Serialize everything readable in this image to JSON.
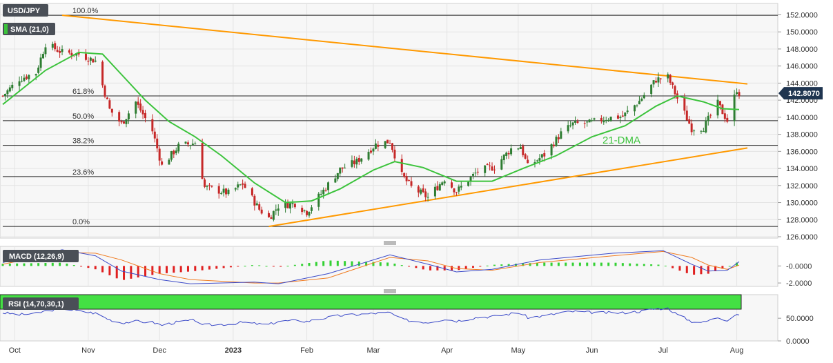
{
  "symbol": "USD/JPY",
  "last_price": "142.8070",
  "colors": {
    "bull": "#2e7d32",
    "bear": "#c62828",
    "sma": "#3cc33c",
    "trend": "#ff9900",
    "macd": "#3a49c8",
    "signal": "#f07b20",
    "rsi": "#3a49c8",
    "overbought": "#44e044",
    "oversold": "#f08080",
    "price_tag": "#1f3550"
  },
  "chart_data": [
    {
      "type": "candlestick",
      "title": "USD/JPY",
      "legend": [
        "SMA (21,0)"
      ],
      "annotation": "21-DMA",
      "x_tick_labels": [
        "Oct",
        "Nov",
        "Dec",
        "2023",
        "Feb",
        "Mar",
        "Apr",
        "May",
        "Jun",
        "Jul",
        "Aug"
      ],
      "y_tick_labels": [
        "152.0000",
        "150.0000",
        "148.0000",
        "146.0000",
        "144.0000",
        "142.0000",
        "140.0000",
        "138.0000",
        "136.0000",
        "134.0000",
        "132.0000",
        "130.0000",
        "128.0000",
        "126.0000"
      ],
      "ylim": [
        126,
        152.2
      ],
      "last_price": 142.807,
      "fibonacci": [
        {
          "label": "100.0%",
          "price": 151.95
        },
        {
          "label": "61.8%",
          "price": 142.5
        },
        {
          "label": "50.0%",
          "price": 139.6
        },
        {
          "label": "38.2%",
          "price": 136.7
        },
        {
          "label": "23.6%",
          "price": 133.05
        },
        {
          "label": "0.0%",
          "price": 127.2
        }
      ],
      "trendlines": [
        {
          "from": [
            "Oct 21",
            151.95
          ],
          "to": [
            "Aug 2",
            143.9
          ]
        },
        {
          "from": [
            "Jan 16",
            127.2
          ],
          "to": [
            "Aug 2",
            136.4
          ]
        }
      ],
      "ohlc_anchor_close": [
        [
          "Sep 26",
          142.5
        ],
        [
          "Oct 3",
          144.5
        ],
        [
          "Oct 10",
          145.2
        ],
        [
          "Oct 14",
          148.6
        ],
        [
          "Oct 21",
          147.6
        ],
        [
          "Oct 28",
          147.4
        ],
        [
          "Nov 4",
          146.6
        ],
        [
          "Nov 10",
          140.9
        ],
        [
          "Nov 15",
          139.2
        ],
        [
          "Nov 21",
          141.8
        ],
        [
          "Nov 28",
          138.4
        ],
        [
          "Dec 2",
          134.3
        ],
        [
          "Dec 9",
          136.6
        ],
        [
          "Dec 16",
          137.0
        ],
        [
          "Dec 20",
          131.8
        ],
        [
          "Dec 30",
          131.1
        ],
        [
          "Jan 5",
          132.2
        ],
        [
          "Jan 12",
          129.2
        ],
        [
          "Jan 16",
          128.2
        ],
        [
          "Jan 20",
          129.6
        ],
        [
          "Jan 27",
          129.9
        ],
        [
          "Feb 1",
          128.9
        ],
        [
          "Feb 8",
          131.4
        ],
        [
          "Feb 15",
          133.9
        ],
        [
          "Feb 22",
          134.8
        ],
        [
          "Mar 2",
          136.8
        ],
        [
          "Mar 8",
          137.2
        ],
        [
          "Mar 13",
          133.2
        ],
        [
          "Mar 17",
          131.8
        ],
        [
          "Mar 24",
          130.6
        ],
        [
          "Mar 31",
          132.8
        ],
        [
          "Apr 5",
          131.3
        ],
        [
          "Apr 14",
          133.7
        ],
        [
          "Apr 21",
          134.2
        ],
        [
          "Apr 28",
          136.3
        ],
        [
          "May 2",
          136.6
        ],
        [
          "May 5",
          134.2
        ],
        [
          "May 12",
          135.6
        ],
        [
          "May 19",
          138.1
        ],
        [
          "May 24",
          139.2
        ],
        [
          "May 31",
          139.3
        ],
        [
          "Jun 7",
          139.9
        ],
        [
          "Jun 14",
          140.1
        ],
        [
          "Jun 21",
          141.9
        ],
        [
          "Jun 28",
          144.4
        ],
        [
          "Jul 3",
          144.7
        ],
        [
          "Jul 7",
          142.2
        ],
        [
          "Jul 13",
          138.7
        ],
        [
          "Jul 18",
          138.8
        ],
        [
          "Jul 24",
          141.6
        ],
        [
          "Jul 28",
          139.6
        ],
        [
          "Aug 1",
          143.3
        ],
        [
          "Aug 2",
          142.8
        ]
      ],
      "sma_21": [
        [
          "Sep 26",
          141.5
        ],
        [
          "Oct 14",
          145.5
        ],
        [
          "Oct 28",
          147.6
        ],
        [
          "Nov 7",
          147.4
        ],
        [
          "Nov 15",
          145.0
        ],
        [
          "Nov 25",
          142.0
        ],
        [
          "Dec 5",
          139.5
        ],
        [
          "Dec 16",
          137.7
        ],
        [
          "Dec 27",
          135.5
        ],
        [
          "Jan 10",
          132.3
        ],
        [
          "Jan 23",
          130.0
        ],
        [
          "Feb 3",
          130.2
        ],
        [
          "Feb 15",
          131.6
        ],
        [
          "Mar 1",
          133.8
        ],
        [
          "Mar 10",
          134.8
        ],
        [
          "Mar 22",
          134.1
        ],
        [
          "Apr 5",
          132.5
        ],
        [
          "Apr 20",
          132.5
        ],
        [
          "May 3",
          134.0
        ],
        [
          "May 17",
          135.5
        ],
        [
          "Jun 1",
          137.7
        ],
        [
          "Jun 15",
          139.0
        ],
        [
          "Jun 28",
          141.3
        ],
        [
          "Jul 7",
          142.5
        ],
        [
          "Jul 18",
          141.8
        ],
        [
          "Jul 26",
          141.0
        ],
        [
          "Aug 2",
          140.9
        ]
      ]
    },
    {
      "type": "bar",
      "title": "MACD (12,26,9)",
      "y_tick_labels": [
        "-0.0000",
        "-2.0000"
      ],
      "ylim": [
        -2.4,
        2.3
      ],
      "macd": [
        [
          "Sep 26",
          0.4
        ],
        [
          "Oct 21",
          1.9
        ],
        [
          "Nov 4",
          1.2
        ],
        [
          "Nov 15",
          -0.6
        ],
        [
          "Dec 1",
          -1.6
        ],
        [
          "Dec 14",
          -2.1
        ],
        [
          "Jan 10",
          -1.9
        ],
        [
          "Jan 20",
          -2.1
        ],
        [
          "Feb 10",
          -0.9
        ],
        [
          "Mar 8",
          1.3
        ],
        [
          "Mar 24",
          0.2
        ],
        [
          "Apr 5",
          -0.7
        ],
        [
          "Apr 20",
          -0.4
        ],
        [
          "May 10",
          0.7
        ],
        [
          "Jun 10",
          1.5
        ],
        [
          "Jul 1",
          1.8
        ],
        [
          "Jul 13",
          0.2
        ],
        [
          "Jul 20",
          -0.6
        ],
        [
          "Jul 28",
          -0.5
        ],
        [
          "Aug 2",
          0.5
        ]
      ],
      "signal": [
        [
          "Sep 26",
          0.2
        ],
        [
          "Oct 21",
          1.6
        ],
        [
          "Nov 4",
          1.5
        ],
        [
          "Nov 15",
          0.7
        ],
        [
          "Dec 1",
          -0.9
        ],
        [
          "Dec 14",
          -1.6
        ],
        [
          "Jan 10",
          -2.0
        ],
        [
          "Jan 20",
          -2.0
        ],
        [
          "Feb 10",
          -1.4
        ],
        [
          "Mar 8",
          1.0
        ],
        [
          "Mar 24",
          0.6
        ],
        [
          "Apr 5",
          -0.3
        ],
        [
          "Apr 20",
          -0.5
        ],
        [
          "May 10",
          0.4
        ],
        [
          "Jun 10",
          1.2
        ],
        [
          "Jul 1",
          1.7
        ],
        [
          "Jul 13",
          1.0
        ],
        [
          "Jul 20",
          0.1
        ],
        [
          "Jul 28",
          -0.4
        ],
        [
          "Aug 2",
          0.1
        ]
      ]
    },
    {
      "type": "line",
      "title": "RSI (14,70,30,1)",
      "y_tick_labels": [
        "50.0000",
        "0.0000"
      ],
      "ylim": [
        0,
        70
      ],
      "bands": {
        "overbought": 70,
        "oversold": 30
      },
      "values": [
        [
          "Sep 26",
          62
        ],
        [
          "Oct 3",
          58
        ],
        [
          "Oct 10",
          60
        ],
        [
          "Oct 14",
          66
        ],
        [
          "Oct 21",
          72
        ],
        [
          "Oct 28",
          66
        ],
        [
          "Nov 4",
          61
        ],
        [
          "Nov 10",
          47
        ],
        [
          "Nov 15",
          40
        ],
        [
          "Nov 21",
          43
        ],
        [
          "Nov 28",
          41
        ],
        [
          "Dec 2",
          35
        ],
        [
          "Dec 9",
          42
        ],
        [
          "Dec 16",
          46
        ],
        [
          "Dec 20",
          35
        ],
        [
          "Dec 30",
          37
        ],
        [
          "Jan 5",
          41
        ],
        [
          "Jan 12",
          37
        ],
        [
          "Jan 16",
          36
        ],
        [
          "Jan 20",
          43
        ],
        [
          "Jan 27",
          45
        ],
        [
          "Feb 1",
          43
        ],
        [
          "Feb 8",
          50
        ],
        [
          "Feb 15",
          56
        ],
        [
          "Feb 22",
          58
        ],
        [
          "Mar 2",
          61
        ],
        [
          "Mar 8",
          62
        ],
        [
          "Mar 13",
          48
        ],
        [
          "Mar 17",
          44
        ],
        [
          "Mar 24",
          41
        ],
        [
          "Mar 31",
          48
        ],
        [
          "Apr 5",
          44
        ],
        [
          "Apr 14",
          52
        ],
        [
          "Apr 21",
          54
        ],
        [
          "Apr 28",
          60
        ],
        [
          "May 2",
          61
        ],
        [
          "May 5",
          52
        ],
        [
          "May 12",
          55
        ],
        [
          "May 19",
          62
        ],
        [
          "May 24",
          65
        ],
        [
          "May 31",
          63
        ],
        [
          "Jun 7",
          62
        ],
        [
          "Jun 14",
          62
        ],
        [
          "Jun 21",
          65
        ],
        [
          "Jun 28",
          71
        ],
        [
          "Jul 3",
          72
        ],
        [
          "Jul 7",
          58
        ],
        [
          "Jul 13",
          43
        ],
        [
          "Jul 18",
          41
        ],
        [
          "Jul 24",
          52
        ],
        [
          "Jul 28",
          46
        ],
        [
          "Aug 1",
          60
        ],
        [
          "Aug 2",
          57
        ]
      ]
    }
  ]
}
